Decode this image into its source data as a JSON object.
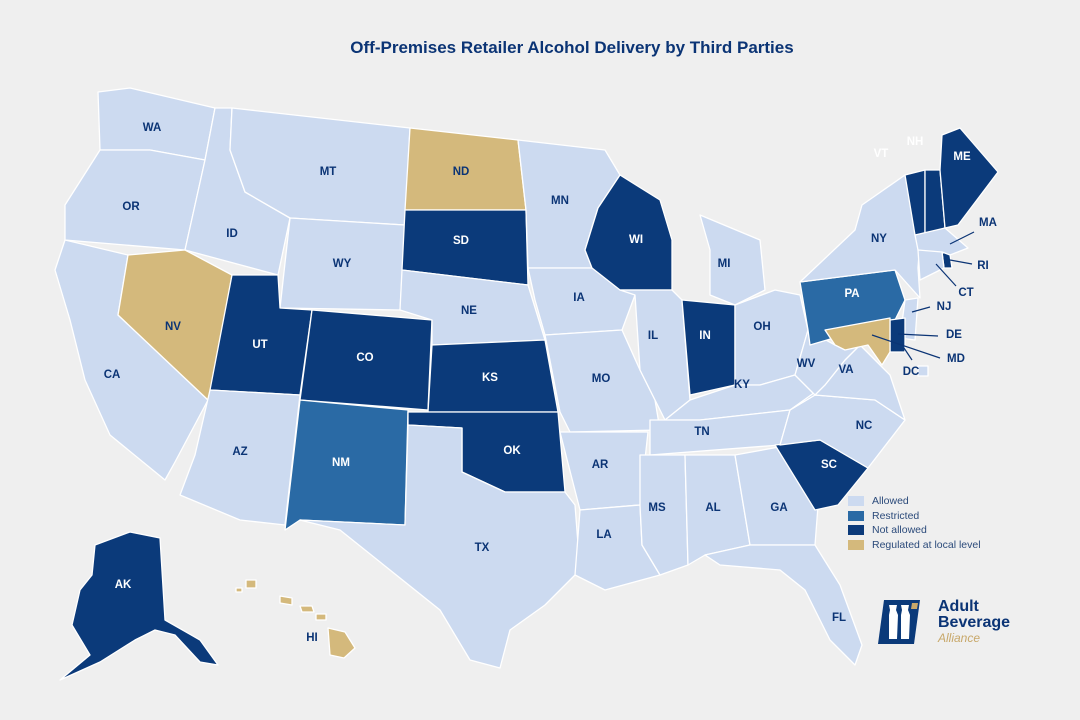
{
  "title": "Off-Premises Retailer Alcohol Delivery by Third Parties",
  "colors": {
    "background": "#efefef",
    "allowed": "#ccdaf0",
    "restricted": "#2a6aa5",
    "not_allowed": "#0b3a7a",
    "local": "#d4b97c",
    "label_dark": "#0b3475",
    "label_light": "#ffffff"
  },
  "legend": {
    "allowed": "Allowed",
    "restricted": "Restricted",
    "not_allowed": "Not allowed",
    "local": "Regulated at local level"
  },
  "brand": {
    "line1": "Adult",
    "line2": "Beverage",
    "line3": "Alliance",
    "icon": "bottles-logo-icon"
  },
  "states": [
    {
      "code": "WA",
      "status": "allowed"
    },
    {
      "code": "OR",
      "status": "allowed"
    },
    {
      "code": "CA",
      "status": "allowed"
    },
    {
      "code": "ID",
      "status": "allowed"
    },
    {
      "code": "NV",
      "status": "local"
    },
    {
      "code": "MT",
      "status": "allowed"
    },
    {
      "code": "WY",
      "status": "allowed"
    },
    {
      "code": "UT",
      "status": "not_allowed"
    },
    {
      "code": "CO",
      "status": "not_allowed"
    },
    {
      "code": "AZ",
      "status": "allowed"
    },
    {
      "code": "NM",
      "status": "restricted"
    },
    {
      "code": "ND",
      "status": "local"
    },
    {
      "code": "SD",
      "status": "not_allowed"
    },
    {
      "code": "NE",
      "status": "allowed"
    },
    {
      "code": "KS",
      "status": "not_allowed"
    },
    {
      "code": "OK",
      "status": "not_allowed"
    },
    {
      "code": "TX",
      "status": "allowed"
    },
    {
      "code": "MN",
      "status": "allowed"
    },
    {
      "code": "IA",
      "status": "allowed"
    },
    {
      "code": "MO",
      "status": "allowed"
    },
    {
      "code": "AR",
      "status": "allowed"
    },
    {
      "code": "LA",
      "status": "allowed"
    },
    {
      "code": "WI",
      "status": "not_allowed"
    },
    {
      "code": "IL",
      "status": "allowed"
    },
    {
      "code": "MI",
      "status": "allowed"
    },
    {
      "code": "IN",
      "status": "not_allowed"
    },
    {
      "code": "OH",
      "status": "allowed"
    },
    {
      "code": "KY",
      "status": "allowed"
    },
    {
      "code": "TN",
      "status": "allowed"
    },
    {
      "code": "MS",
      "status": "allowed"
    },
    {
      "code": "AL",
      "status": "allowed"
    },
    {
      "code": "GA",
      "status": "allowed"
    },
    {
      "code": "FL",
      "status": "allowed"
    },
    {
      "code": "SC",
      "status": "not_allowed"
    },
    {
      "code": "NC",
      "status": "allowed"
    },
    {
      "code": "VA",
      "status": "allowed"
    },
    {
      "code": "WV",
      "status": "allowed"
    },
    {
      "code": "PA",
      "status": "restricted"
    },
    {
      "code": "NY",
      "status": "allowed"
    },
    {
      "code": "VT",
      "status": "not_allowed"
    },
    {
      "code": "NH",
      "status": "not_allowed"
    },
    {
      "code": "ME",
      "status": "not_allowed"
    },
    {
      "code": "MA",
      "status": "allowed"
    },
    {
      "code": "RI",
      "status": "not_allowed"
    },
    {
      "code": "CT",
      "status": "allowed"
    },
    {
      "code": "NJ",
      "status": "allowed"
    },
    {
      "code": "DE",
      "status": "not_allowed"
    },
    {
      "code": "MD",
      "status": "local"
    },
    {
      "code": "DC",
      "status": "allowed"
    },
    {
      "code": "AK",
      "status": "not_allowed"
    },
    {
      "code": "HI",
      "status": "local"
    }
  ]
}
